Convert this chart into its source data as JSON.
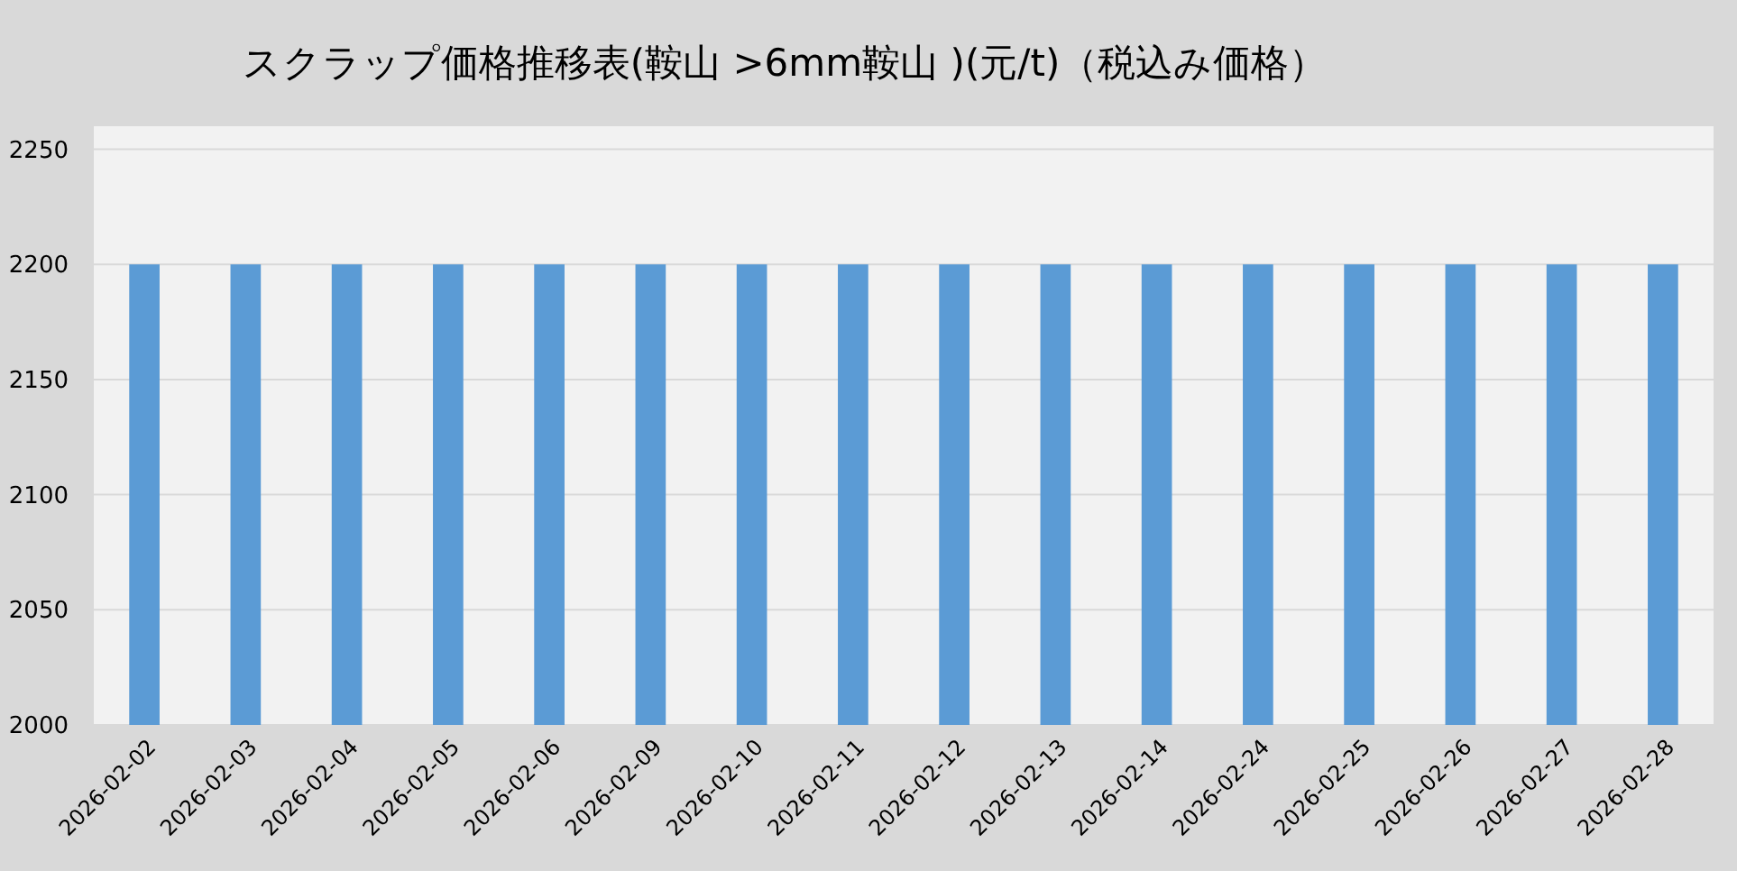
{
  "chart_data": {
    "type": "bar",
    "title": "スクラップ価格推移表(鞍山 >6mm鞍山 )(元/t)（税込み価格）",
    "categories": [
      "2026-02-02",
      "2026-02-03",
      "2026-02-04",
      "2026-02-05",
      "2026-02-06",
      "2026-02-09",
      "2026-02-10",
      "2026-02-11",
      "2026-02-12",
      "2026-02-13",
      "2026-02-14",
      "2026-02-24",
      "2026-02-25",
      "2026-02-26",
      "2026-02-27",
      "2026-02-28"
    ],
    "values": [
      2200,
      2200,
      2200,
      2200,
      2200,
      2200,
      2200,
      2200,
      2200,
      2200,
      2200,
      2200,
      2200,
      2200,
      2200,
      2200
    ],
    "color": "#5b9bd5",
    "ylim": [
      2000,
      2260
    ],
    "yticks": [
      2000,
      2050,
      2100,
      2150,
      2200,
      2250
    ],
    "grid": "y"
  }
}
